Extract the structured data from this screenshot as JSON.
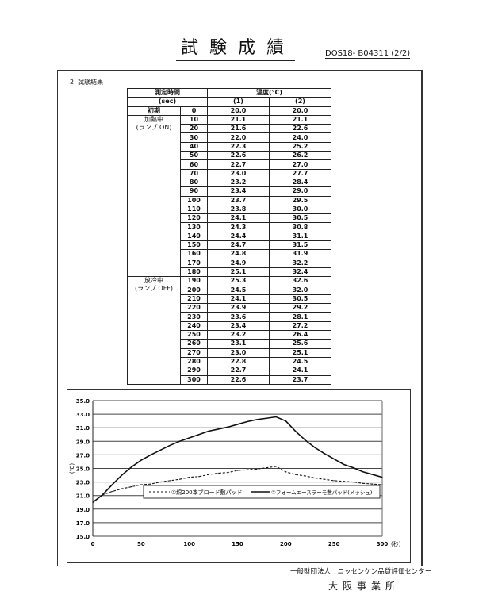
{
  "header": {
    "title": "試験成績",
    "doc_number": "DOS18- B04311 (2/2)"
  },
  "section_title": "2.  試験結果",
  "table": {
    "header_time": "測定時間",
    "header_time_unit": "(sec)",
    "header_temp": "温度(℃)",
    "col1": "(1)",
    "col2": "(2)",
    "phase_initial": "初期",
    "phase_heating": "加熱中",
    "phase_heating_note": "(ランプ ON)",
    "phase_cooling": "放冷中",
    "phase_cooling_note": "(ランプ OFF)",
    "rows": [
      [
        "0",
        "20.0",
        "20.0"
      ],
      [
        "10",
        "21.1",
        "21.1"
      ],
      [
        "20",
        "21.6",
        "22.6"
      ],
      [
        "30",
        "22.0",
        "24.0"
      ],
      [
        "40",
        "22.3",
        "25.2"
      ],
      [
        "50",
        "22.6",
        "26.2"
      ],
      [
        "60",
        "22.7",
        "27.0"
      ],
      [
        "70",
        "23.0",
        "27.7"
      ],
      [
        "80",
        "23.2",
        "28.4"
      ],
      [
        "90",
        "23.4",
        "29.0"
      ],
      [
        "100",
        "23.7",
        "29.5"
      ],
      [
        "110",
        "23.8",
        "30.0"
      ],
      [
        "120",
        "24.1",
        "30.5"
      ],
      [
        "130",
        "24.3",
        "30.8"
      ],
      [
        "140",
        "24.4",
        "31.1"
      ],
      [
        "150",
        "24.7",
        "31.5"
      ],
      [
        "160",
        "24.8",
        "31.9"
      ],
      [
        "170",
        "24.9",
        "32.2"
      ],
      [
        "180",
        "25.1",
        "32.4"
      ],
      [
        "190",
        "25.3",
        "32.6"
      ],
      [
        "200",
        "24.5",
        "32.0"
      ],
      [
        "210",
        "24.1",
        "30.5"
      ],
      [
        "220",
        "23.9",
        "29.2"
      ],
      [
        "230",
        "23.6",
        "28.1"
      ],
      [
        "240",
        "23.4",
        "27.2"
      ],
      [
        "250",
        "23.2",
        "26.4"
      ],
      [
        "260",
        "23.1",
        "25.6"
      ],
      [
        "270",
        "23.0",
        "25.1"
      ],
      [
        "280",
        "22.8",
        "24.5"
      ],
      [
        "290",
        "22.7",
        "24.1"
      ],
      [
        "300",
        "22.6",
        "23.7"
      ]
    ]
  },
  "chart_data": {
    "type": "line",
    "ylabel": "(℃)",
    "xlabel": "(秒)",
    "xlim": [
      0,
      300
    ],
    "ylim": [
      15,
      35
    ],
    "xticks": [
      "0",
      "50",
      "100",
      "150",
      "200",
      "250",
      "300"
    ],
    "yticks": [
      "15.0",
      "17.0",
      "19.0",
      "21.0",
      "23.0",
      "25.0",
      "27.0",
      "29.0",
      "31.0",
      "33.0",
      "35.0"
    ],
    "grid": "horizontal",
    "legend_position": "center",
    "x": [
      0,
      10,
      20,
      30,
      40,
      50,
      60,
      70,
      80,
      90,
      100,
      110,
      120,
      130,
      140,
      150,
      160,
      170,
      180,
      190,
      200,
      210,
      220,
      230,
      240,
      250,
      260,
      270,
      280,
      290,
      300
    ],
    "series": [
      {
        "name": "①綿200本ブロード敷パッド",
        "style": "dashed",
        "values": [
          20.0,
          21.1,
          21.6,
          22.0,
          22.3,
          22.6,
          22.7,
          23.0,
          23.2,
          23.4,
          23.7,
          23.8,
          24.1,
          24.3,
          24.4,
          24.7,
          24.8,
          24.9,
          25.1,
          25.3,
          24.5,
          24.1,
          23.9,
          23.6,
          23.4,
          23.2,
          23.1,
          23.0,
          22.8,
          22.7,
          22.6
        ]
      },
      {
        "name": "②フォームエースラーモ敷パッド(メッシュ)",
        "style": "solid",
        "values": [
          20.0,
          21.1,
          22.6,
          24.0,
          25.2,
          26.2,
          27.0,
          27.7,
          28.4,
          29.0,
          29.5,
          30.0,
          30.5,
          30.8,
          31.1,
          31.5,
          31.9,
          32.2,
          32.4,
          32.6,
          32.0,
          30.5,
          29.2,
          28.1,
          27.2,
          26.4,
          25.6,
          25.1,
          24.5,
          24.1,
          23.7
        ]
      }
    ]
  },
  "footer": {
    "organization": "一般財団法人　ニッセンケン品質評価センター",
    "office": "大阪事業所"
  }
}
